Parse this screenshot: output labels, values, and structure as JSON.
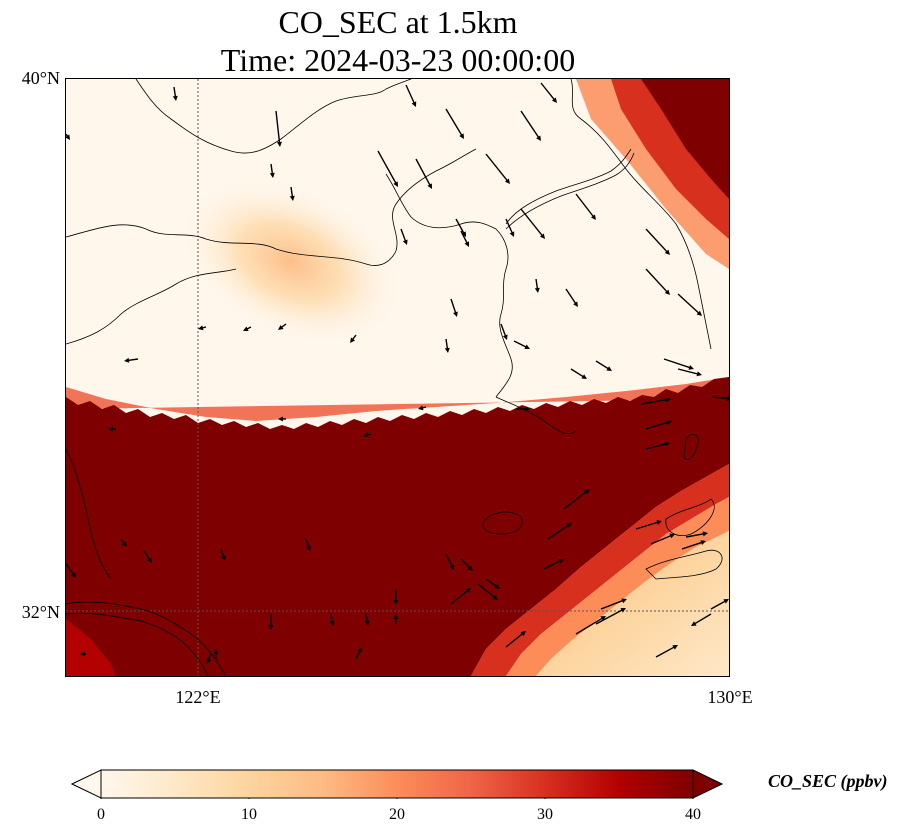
{
  "title": {
    "line1": "CO_SEC at 1.5km",
    "line2": "Time: 2024-03-23 00:00:00"
  },
  "map": {
    "lat_ticks": [
      "40°N",
      "32°N"
    ],
    "lon_ticks": [
      "122°E",
      "130°E"
    ],
    "extent": {
      "lon_min": 120,
      "lon_max": 130,
      "lat_min": 31,
      "lat_max": 40
    },
    "gridlines": {
      "lons": [
        122,
        130
      ],
      "lats": [
        40,
        32
      ],
      "style": "dotted"
    },
    "field": "CO_SEC",
    "plume": {
      "description_values_ppbv": {
        "low": 0,
        "high": 40
      }
    }
  },
  "colorbar": {
    "label": "CO_SEC (ppbv)",
    "ticks": [
      "0",
      "10",
      "20",
      "30",
      "40"
    ],
    "vmin": 0,
    "vmax": 40,
    "extend": "both",
    "colors": [
      "#fff7ec",
      "#fee8c8",
      "#fdd49e",
      "#fdbb84",
      "#fc8d59",
      "#ef6548",
      "#d7301f",
      "#b30000",
      "#7f0000"
    ]
  }
}
